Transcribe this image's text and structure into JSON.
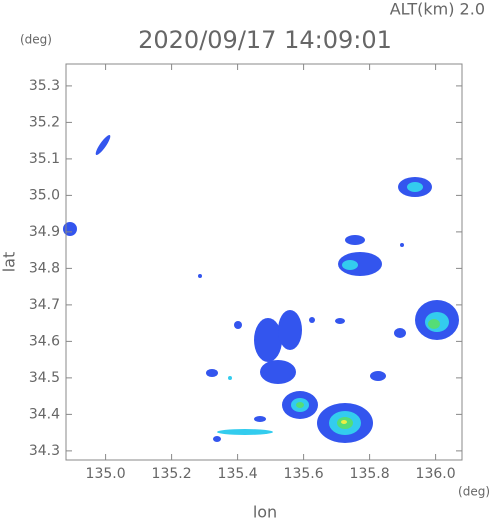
{
  "header": {
    "altitude": "ALT(km)  2.0",
    "time": "2020/09/17 14:09:01",
    "y_unit": "(deg)",
    "x_unit": "(deg)"
  },
  "plot": {
    "xlabel": "lon",
    "ylabel": "lat",
    "xlim": [
      134.88,
      136.08
    ],
    "ylim": [
      34.275,
      35.36
    ],
    "xticks": [
      {
        "value": 135.0,
        "label": "135.0"
      },
      {
        "value": 135.2,
        "label": "135.2"
      },
      {
        "value": 135.4,
        "label": "135.4"
      },
      {
        "value": 135.6,
        "label": "135.6"
      },
      {
        "value": 135.8,
        "label": "135.8"
      },
      {
        "value": 136.0,
        "label": "136.0"
      }
    ],
    "yticks": [
      {
        "value": 34.3,
        "label": "34.3"
      },
      {
        "value": 34.4,
        "label": "34.4"
      },
      {
        "value": 34.5,
        "label": "34.5"
      },
      {
        "value": 34.6,
        "label": "34.6"
      },
      {
        "value": 34.7,
        "label": "34.7"
      },
      {
        "value": 34.8,
        "label": "34.8"
      },
      {
        "value": 34.9,
        "label": "34.9"
      },
      {
        "value": 35.0,
        "label": "35.0"
      },
      {
        "value": 35.1,
        "label": "35.1"
      },
      {
        "value": 35.2,
        "label": "35.2"
      },
      {
        "value": 35.3,
        "label": "35.3"
      }
    ]
  }
}
